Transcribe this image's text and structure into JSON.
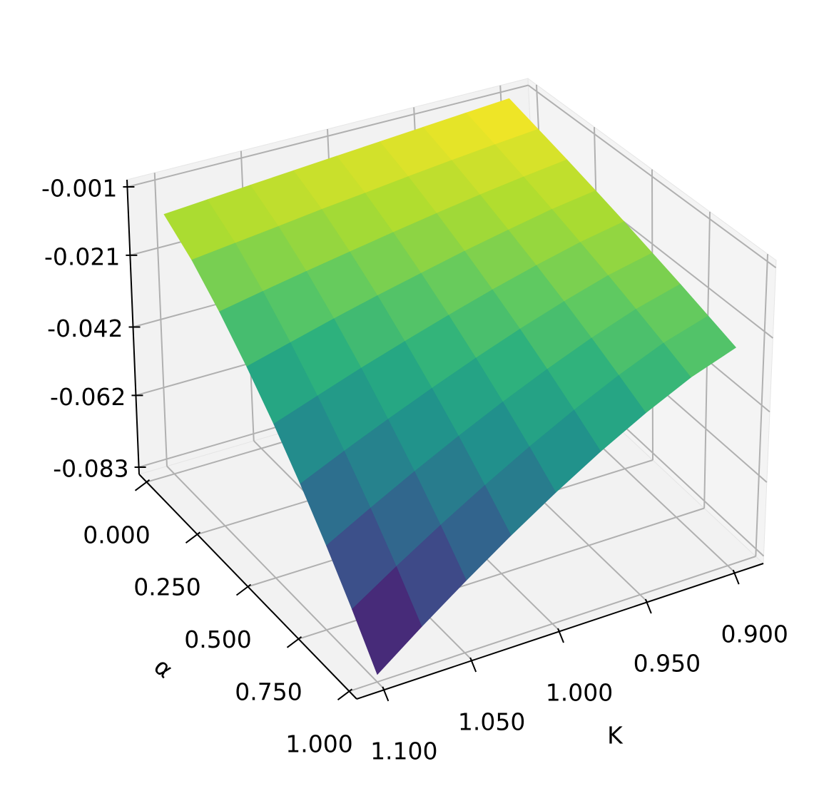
{
  "chart_data": {
    "type": "surface",
    "xlabel": "K",
    "ylabel": "α",
    "x": [
      0.9,
      0.925,
      0.95,
      0.975,
      1.0,
      1.025,
      1.05,
      1.075,
      1.1
    ],
    "y": [
      0,
      0.125,
      0.25,
      0.375,
      0.5,
      0.625,
      0.75,
      0.875,
      1
    ],
    "z": [
      [
        -0.001,
        -0.002,
        -0.003,
        -0.004,
        -0.005,
        -0.006,
        -0.007,
        -0.008,
        -0.009
      ],
      [
        -0.0038,
        -0.005,
        -0.0063,
        -0.0077,
        -0.0092,
        -0.0106,
        -0.0122,
        -0.0137,
        -0.0152
      ],
      [
        -0.0065,
        -0.0081,
        -0.0099,
        -0.0119,
        -0.014,
        -0.0162,
        -0.0184,
        -0.0207,
        -0.0231
      ],
      [
        -0.0093,
        -0.0112,
        -0.0137,
        -0.0163,
        -0.0192,
        -0.0221,
        -0.0252,
        -0.0285,
        -0.0318
      ],
      [
        -0.012,
        -0.0144,
        -0.0175,
        -0.0209,
        -0.0246,
        -0.0285,
        -0.0325,
        -0.0368,
        -0.0411
      ],
      [
        -0.0148,
        -0.0176,
        -0.0214,
        -0.0256,
        -0.0302,
        -0.0351,
        -0.0402,
        -0.0455,
        -0.051
      ],
      [
        -0.0175,
        -0.0209,
        -0.0254,
        -0.0305,
        -0.036,
        -0.0419,
        -0.0481,
        -0.0546,
        -0.0613
      ],
      [
        -0.0203,
        -0.0242,
        -0.0295,
        -0.0355,
        -0.042,
        -0.049,
        -0.0563,
        -0.064,
        -0.072
      ],
      [
        -0.023,
        -0.0275,
        -0.0336,
        -0.0405,
        -0.0481,
        -0.0562,
        -0.0648,
        -0.0737,
        -0.083
      ]
    ],
    "colormap": "viridis",
    "xlim": [
      0.884,
      1.116
    ],
    "ylim": [
      -0.037,
      1.037
    ],
    "zlim": [
      -0.0851,
      0.0011
    ],
    "xticks": [
      {
        "value": 0.9,
        "label": "0.900"
      },
      {
        "value": 0.95,
        "label": "0.950"
      },
      {
        "value": 1.0,
        "label": "1.000"
      },
      {
        "value": 1.05,
        "label": "1.050"
      },
      {
        "value": 1.1,
        "label": "1.100"
      }
    ],
    "yticks": [
      {
        "value": 0,
        "label": "0.000"
      },
      {
        "value": 0.25,
        "label": "0.250"
      },
      {
        "value": 0.5,
        "label": "0.500"
      },
      {
        "value": 0.75,
        "label": "0.750"
      },
      {
        "value": 1,
        "label": "1.000"
      }
    ],
    "zticks": [
      -0.083,
      -0.062,
      -0.042,
      -0.021,
      -0.001
    ],
    "grid": true
  }
}
